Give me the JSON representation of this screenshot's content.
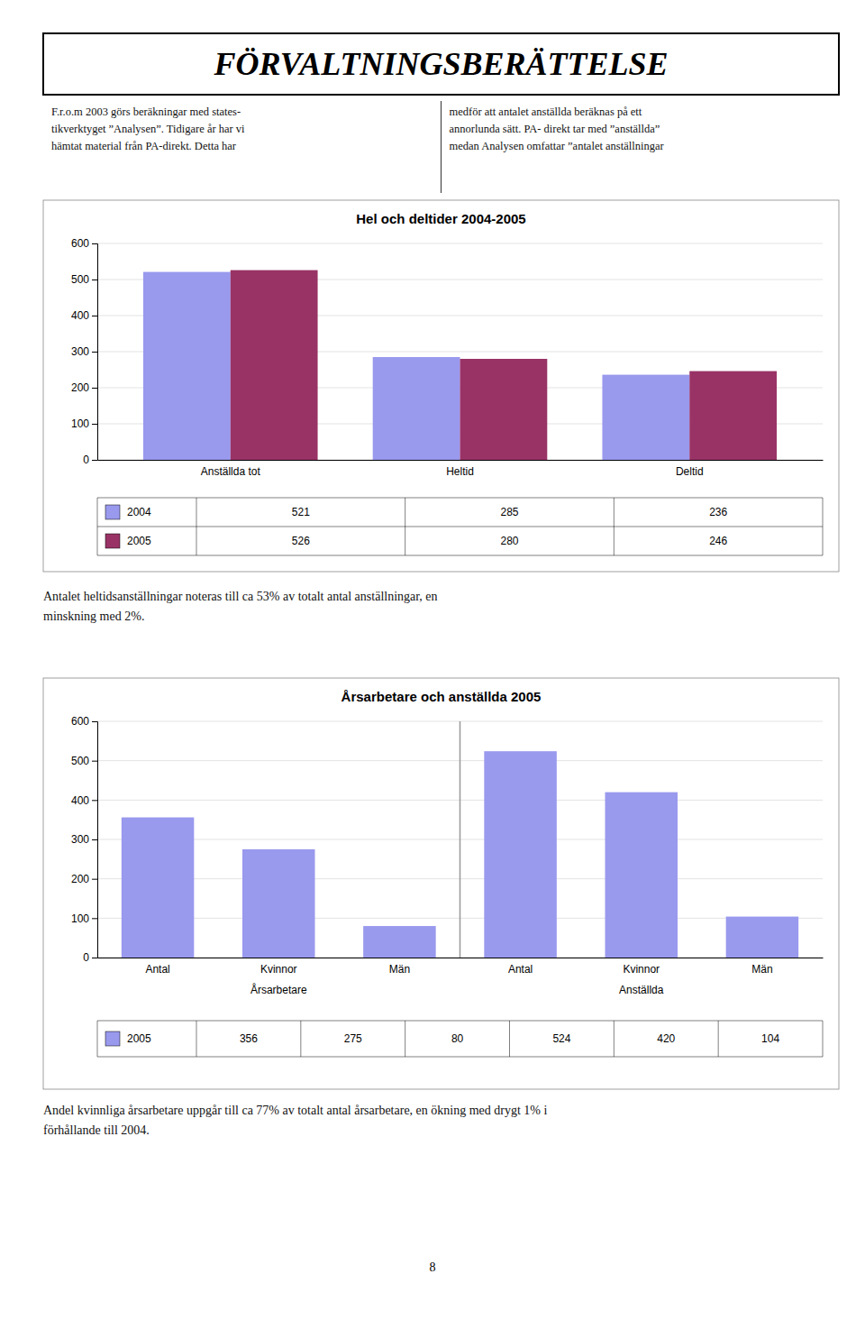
{
  "title": "FÖRVALTNINGSBERÄTTELSE",
  "text_left": "F.r.o.m 2003 görs beräkningar med states-\ntikverktyget ”Analysen”. Tidigare år har vi\nhämtat material från PA-direkt. Detta har",
  "text_right": "medför att antalet anställda beräknas på ett\nannorlunda sätt. PA- direkt tar med ”anställda”\nmedan Analysen omfattar ”antalet anställningar",
  "text_between": "Antalet heltidsanställningar noteras till ca 53% av totalt antal anställningar, en\nminskning med 2%.",
  "text_bottom": "Andel kvinnliga årsarbetare uppgår till ca 77% av totalt antal årsarbetare, en ökning med drygt 1% i\nförhållande till 2004.",
  "page_number": "8",
  "chart_data": [
    {
      "type": "bar",
      "title": "Hel och deltider 2004-2005",
      "categories": [
        "Anställda tot",
        "Heltid",
        "Deltid"
      ],
      "series": [
        {
          "name": "2004",
          "color": "#9999ee",
          "values": [
            521,
            285,
            236
          ]
        },
        {
          "name": "2005",
          "color": "#993366",
          "values": [
            526,
            280,
            246
          ]
        }
      ],
      "ylim": [
        0,
        600
      ],
      "yticks": [
        0,
        100,
        200,
        300,
        400,
        500,
        600
      ],
      "grid": true,
      "legend": "bottom"
    },
    {
      "type": "bar",
      "title": "Årsarbetare och anställda 2005",
      "categories": [
        "Antal",
        "Kvinnor",
        "Män",
        "Antal",
        "Kvinnor",
        "Män"
      ],
      "group_labels": [
        "Årsarbetare",
        "Anställda"
      ],
      "series": [
        {
          "name": "2005",
          "color": "#9999ee",
          "values": [
            356,
            275,
            80,
            524,
            420,
            104
          ]
        }
      ],
      "ylim": [
        0,
        600
      ],
      "yticks": [
        0,
        100,
        200,
        300,
        400,
        500,
        600
      ],
      "grid": true,
      "legend": "bottom"
    }
  ]
}
